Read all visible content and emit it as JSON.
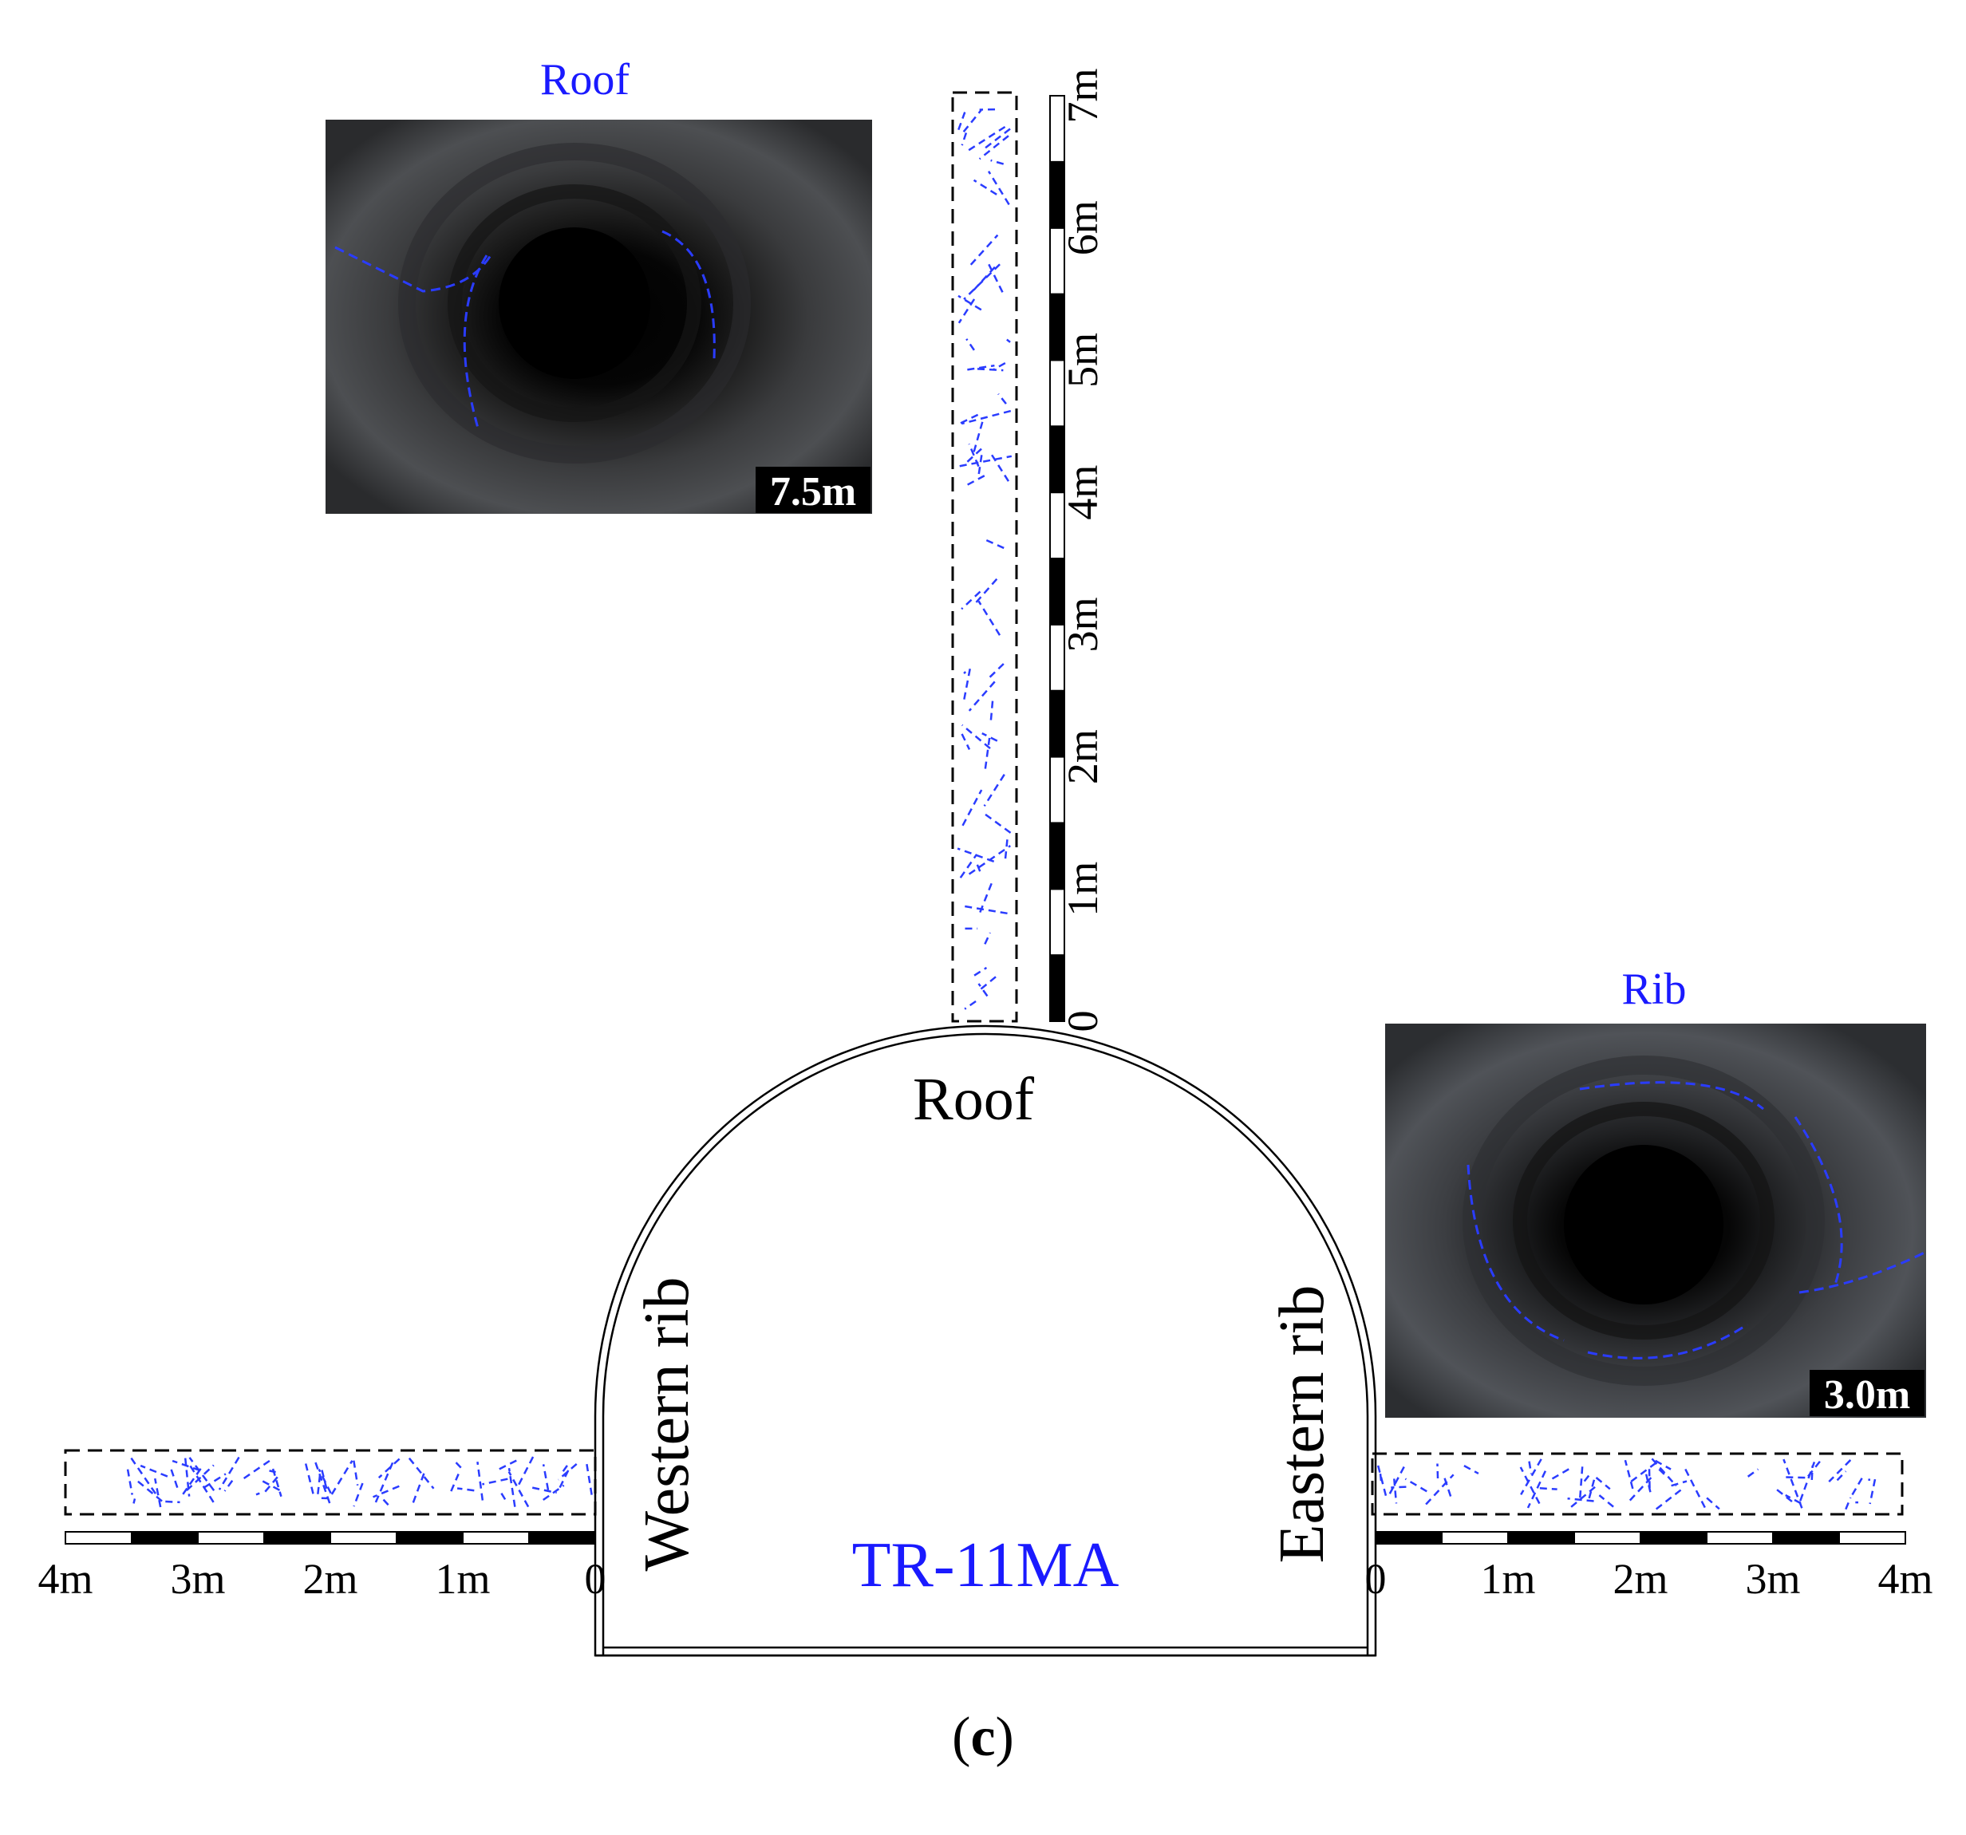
{
  "figure": {
    "panel_label_open": "(",
    "panel_label_letter": "c",
    "panel_label_close": ")"
  },
  "tunnel": {
    "id_label": "TR-11MA",
    "roof_label": "Roof",
    "west_label": "Western rib",
    "east_label": "Eastern rib"
  },
  "roof_photo": {
    "title": "Roof",
    "depth_badge": "7.5m"
  },
  "rib_photo": {
    "title": "Rib",
    "depth_badge": "3.0m"
  },
  "roof_scale": {
    "ticks": [
      "0",
      "1m",
      "2m",
      "3m",
      "4m",
      "5m",
      "6m",
      "7m"
    ]
  },
  "west_scale": {
    "ticks": [
      "0",
      "1m",
      "2m",
      "3m",
      "4m"
    ]
  },
  "east_scale": {
    "ticks": [
      "0",
      "1m",
      "2m",
      "3m",
      "4m"
    ]
  },
  "colors": {
    "accent_blue": "#1a1aff",
    "crack_blue": "#2a3cff",
    "ink": "#000000",
    "badge_bg": "#000000",
    "badge_fg": "#ffffff"
  }
}
